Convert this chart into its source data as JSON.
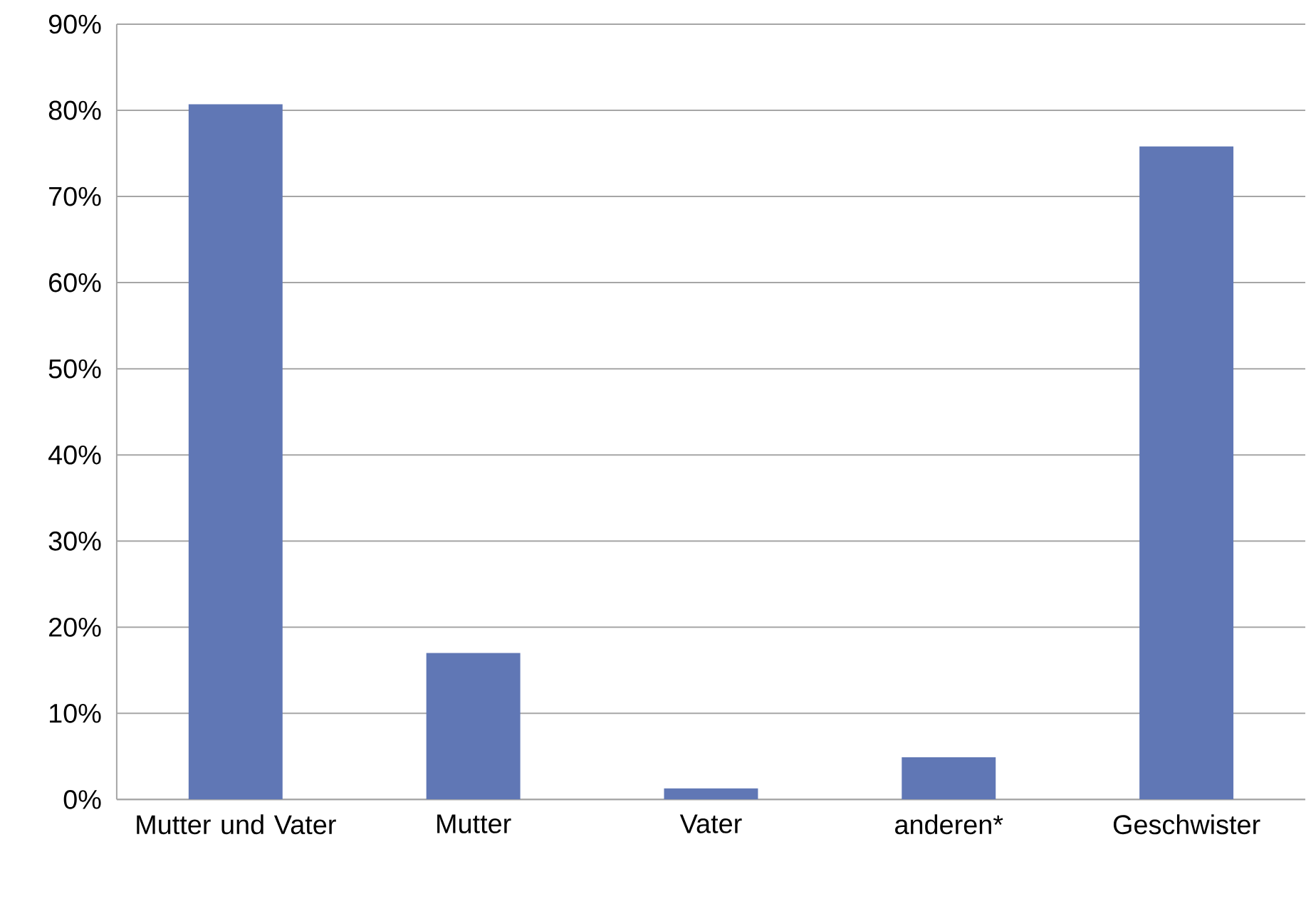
{
  "chart_data": {
    "type": "bar",
    "categories": [
      "Mutter und Vater",
      "Mutter",
      "Vater",
      "anderen*",
      "Geschwister"
    ],
    "values": [
      80.7,
      17,
      1.3,
      4.9,
      75.8
    ],
    "color": "#6077b5",
    "ylim": [
      0,
      90
    ],
    "yticks": [
      {
        "value": 0,
        "label": "0%"
      },
      {
        "value": 10,
        "label": "10%"
      },
      {
        "value": 20,
        "label": "20%"
      },
      {
        "value": 30,
        "label": "30%"
      },
      {
        "value": 40,
        "label": "40%"
      },
      {
        "value": 50,
        "label": "50%"
      },
      {
        "value": 60,
        "label": "60%"
      },
      {
        "value": 70,
        "label": "70%"
      },
      {
        "value": 80,
        "label": "80%"
      },
      {
        "value": 90,
        "label": "90%"
      }
    ],
    "grid": "y"
  }
}
